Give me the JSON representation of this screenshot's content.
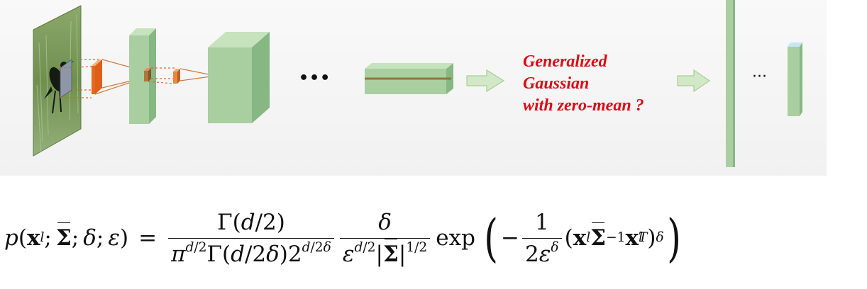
{
  "annotation": {
    "lines": [
      "Generalized",
      "Gaussian",
      "with zero-mean ?"
    ],
    "color": "#dd0a14"
  },
  "ellipsis": [
    "•••",
    "···"
  ],
  "formula": {
    "lhs": "p(x_l; Σ̂; δ; ε) =",
    "frac1_num": "Γ(d/2)",
    "frac1_den": "π^{d/2} Γ(d/2δ) 2^{d/2δ}",
    "frac2_num": "δ",
    "frac2_den": "ε^{d/2} |Σ̂|^{1/2}",
    "exp": "exp",
    "frac3_num": "1",
    "frac3_den": "2ε^δ",
    "tail": "(x_l Σ̂^{-1} x_l^T)^δ"
  },
  "colors": {
    "layer_green": "#a9cfa0",
    "layer_edge": "#7aaa75",
    "orange": "#e36a1c",
    "grey_patch": "#8f96a8",
    "arrow": "#d2e8c7"
  },
  "icons": [
    "bird-photo",
    "conv-layer",
    "arrow"
  ]
}
